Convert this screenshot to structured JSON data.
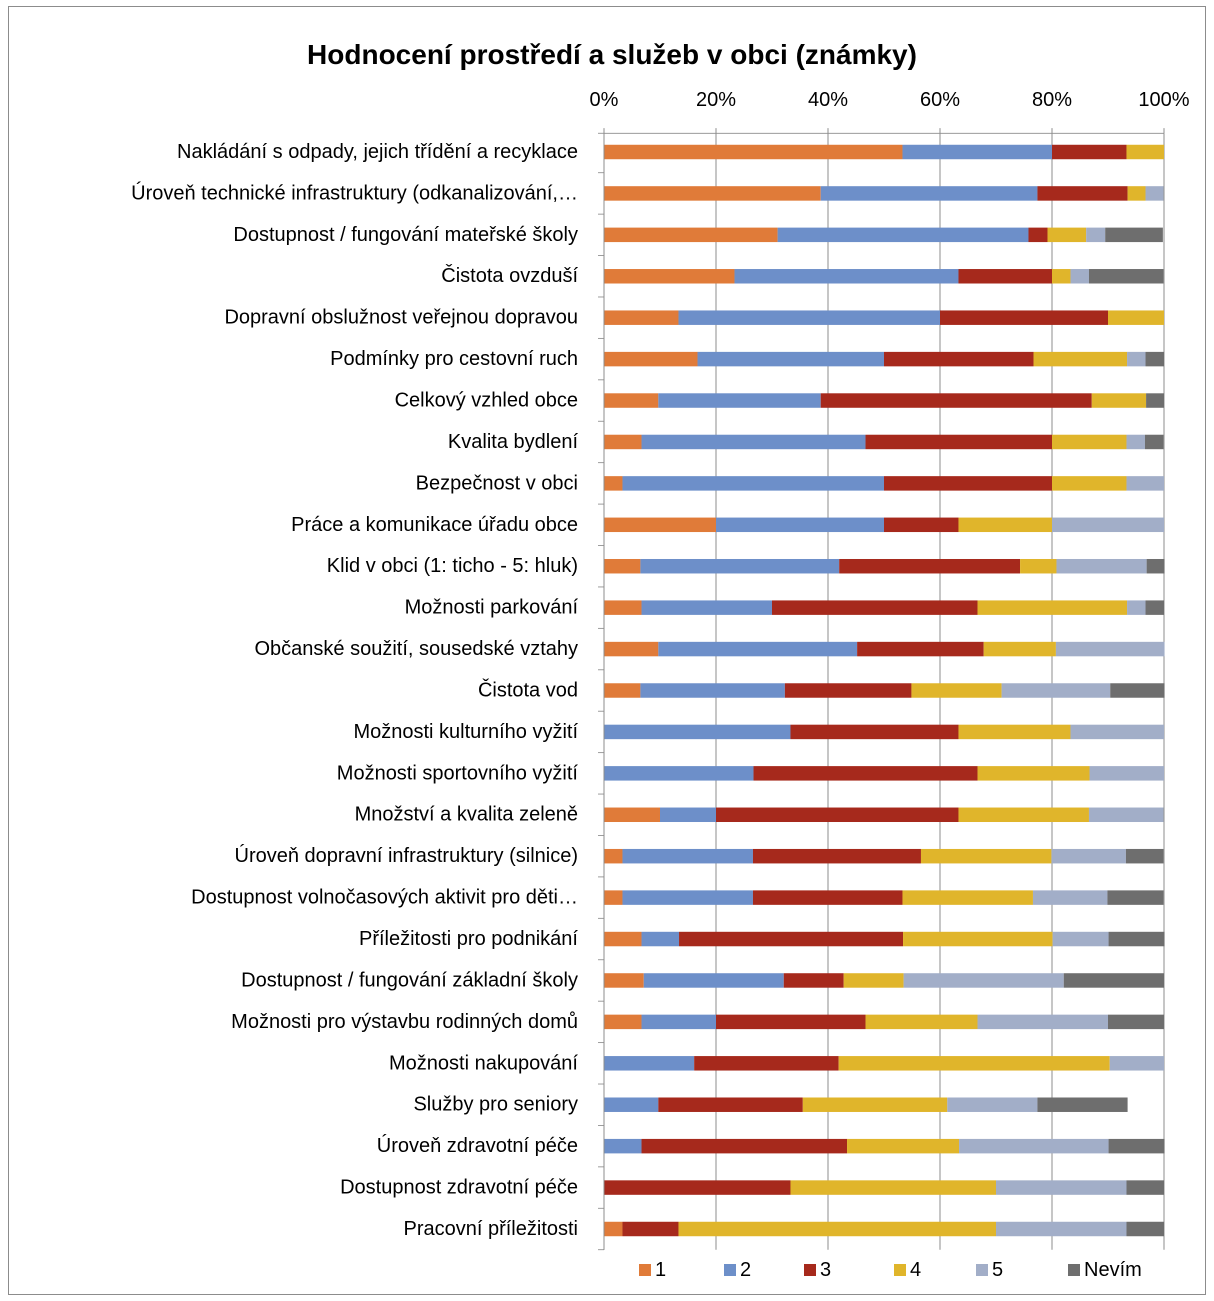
{
  "chart_data": {
    "type": "bar",
    "orientation": "horizontal",
    "stacked": true,
    "percent_stacked": true,
    "title": "Hodnocení prostředí a služeb v obci (známky)",
    "x_ticks": [
      "0%",
      "20%",
      "40%",
      "60%",
      "80%",
      "100%"
    ],
    "xlim": [
      0,
      100
    ],
    "grid": true,
    "legend_position": "bottom",
    "categories": [
      "Nakládání s odpady, jejich třídění a recyklace",
      "Úroveň technické infrastruktury (odkanalizování,…",
      "Dostupnost / fungování mateřské školy",
      "Čistota ovzduší",
      "Dopravní obslužnost veřejnou dopravou",
      "Podmínky pro cestovní ruch",
      "Celkový vzhled obce",
      "Kvalita bydlení",
      "Bezpečnost v obci",
      "Práce a komunikace úřadu obce",
      "Klid v obci (1: ticho - 5: hluk)",
      "Možnosti parkování",
      "Občanské soužití, sousedské vztahy",
      "Čistota vod",
      "Možnosti kulturního vyžití",
      "Možnosti sportovního vyžití",
      "Množství a kvalita zeleně",
      "Úroveň dopravní infrastruktury (silnice)",
      "Dostupnost volnočasových aktivit pro děti…",
      "Příležitosti pro podnikání",
      "Dostupnost / fungování základní školy",
      "Možnosti pro výstavbu rodinných domů",
      "Možnosti nakupování",
      "Služby pro seniory",
      "Úroveň zdravotní péče",
      "Dostupnost zdravotní péče",
      "Pracovní příležitosti"
    ],
    "series": [
      {
        "name": "1",
        "color": "#e07b39",
        "values": [
          53.3,
          38.7,
          31.0,
          23.3,
          13.3,
          16.7,
          9.7,
          6.7,
          3.3,
          20.0,
          6.5,
          6.7,
          9.7,
          6.5,
          0,
          0,
          10.0,
          3.3,
          3.3,
          6.7,
          7.1,
          6.7,
          0,
          0,
          0,
          0,
          3.3
        ]
      },
      {
        "name": "2",
        "color": "#6d8fc9",
        "values": [
          26.7,
          38.7,
          44.8,
          40.0,
          46.7,
          33.3,
          29.0,
          40.0,
          46.7,
          30.0,
          35.5,
          23.3,
          35.5,
          25.8,
          33.3,
          26.7,
          10.0,
          23.3,
          23.3,
          6.7,
          25.0,
          13.3,
          16.1,
          9.7,
          6.7,
          0,
          0
        ]
      },
      {
        "name": "3",
        "color": "#a6291c",
        "values": [
          13.3,
          16.1,
          3.4,
          16.7,
          30.0,
          26.7,
          48.4,
          33.3,
          30.0,
          13.3,
          32.3,
          36.7,
          22.6,
          22.6,
          30.0,
          40.0,
          43.3,
          30.0,
          26.7,
          40.0,
          10.7,
          26.7,
          25.8,
          25.8,
          36.7,
          33.3,
          10.0
        ]
      },
      {
        "name": "4",
        "color": "#e0b52b",
        "values": [
          6.7,
          3.2,
          6.9,
          3.3,
          10.0,
          16.7,
          9.7,
          13.3,
          13.3,
          16.7,
          6.5,
          26.7,
          12.9,
          16.1,
          20.0,
          20.0,
          23.3,
          23.3,
          23.3,
          26.7,
          10.7,
          20.0,
          48.4,
          25.8,
          20.0,
          36.7,
          56.7
        ]
      },
      {
        "name": "5",
        "color": "#a2aec8",
        "values": [
          0,
          3.2,
          3.4,
          3.3,
          0,
          3.3,
          0,
          3.3,
          6.7,
          20.0,
          16.1,
          3.3,
          19.4,
          19.4,
          16.7,
          13.3,
          13.3,
          13.3,
          13.3,
          10.0,
          28.6,
          23.3,
          9.7,
          16.1,
          26.7,
          23.3,
          23.3
        ]
      },
      {
        "name": "Nevím",
        "color": "#6e6e6e",
        "values": [
          0,
          0,
          10.3,
          13.3,
          0,
          3.3,
          3.2,
          3.3,
          0,
          0,
          3.2,
          3.3,
          0,
          9.7,
          0,
          0,
          0,
          6.7,
          10.0,
          10.0,
          17.9,
          10.0,
          0,
          16.1,
          10.0,
          6.7,
          6.7
        ]
      }
    ]
  }
}
